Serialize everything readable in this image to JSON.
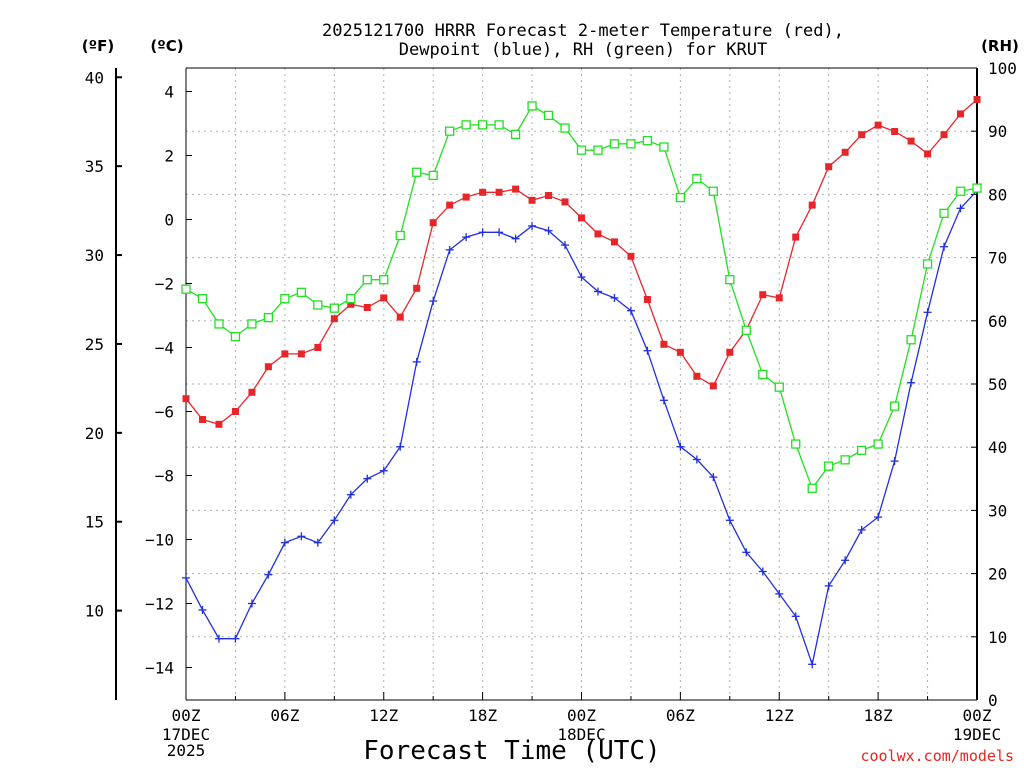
{
  "chart_data": {
    "type": "line",
    "title": [
      "2025121700 HRRR Forecast 2-meter Temperature (red),",
      "Dewpoint (blue), RH (green) for KRUT"
    ],
    "xlabel": "Forecast Time (UTC)",
    "credit": "coolwx.com/models",
    "units": {
      "f": "(ºF)",
      "c": "(ºC)",
      "rh": "(RH)"
    },
    "x_hours_range": [
      0,
      48
    ],
    "x_ticks": [
      {
        "hour": 0,
        "label": "00Z",
        "sub": [
          "17DEC",
          "2025"
        ]
      },
      {
        "hour": 6,
        "label": "06Z"
      },
      {
        "hour": 12,
        "label": "12Z"
      },
      {
        "hour": 18,
        "label": "18Z"
      },
      {
        "hour": 24,
        "label": "00Z",
        "sub": [
          "18DEC"
        ]
      },
      {
        "hour": 30,
        "label": "06Z"
      },
      {
        "hour": 36,
        "label": "12Z"
      },
      {
        "hour": 42,
        "label": "18Z"
      },
      {
        "hour": 48,
        "label": "00Z",
        "sub": [
          "19DEC"
        ]
      }
    ],
    "ylim_c": [
      -15,
      4.5
    ],
    "y_ticks_c": [
      4,
      2,
      0,
      -2,
      -4,
      -6,
      -8,
      -10,
      -12,
      -14
    ],
    "y_ticks_c_labels": [
      "4",
      "2",
      "0",
      "−2",
      "−4",
      "−6",
      "−8",
      "−10",
      "−12",
      "−14"
    ],
    "y_ticks_f": [
      40,
      35,
      30,
      25,
      20,
      15,
      10
    ],
    "ylim_rh": [
      0,
      100
    ],
    "y_ticks_rh": [
      100,
      90,
      80,
      70,
      60,
      50,
      40,
      30,
      20,
      10,
      0
    ],
    "grid": true,
    "series": [
      {
        "name": "Temperature",
        "axis": "c",
        "color": "#e8262a",
        "marker": "filled-square",
        "values": [
          -5.6,
          -6.25,
          -6.4,
          -6.0,
          -5.4,
          -4.6,
          -4.2,
          -4.2,
          -4.0,
          -3.1,
          -2.65,
          -2.75,
          -2.45,
          -3.05,
          -2.15,
          -0.1,
          0.45,
          0.7,
          0.85,
          0.85,
          0.95,
          0.6,
          0.75,
          0.55,
          0.05,
          -0.45,
          -0.7,
          -1.15,
          -2.5,
          -3.9,
          -4.15,
          -4.9,
          -5.2,
          -4.15,
          -3.45,
          -2.35,
          -2.45,
          -0.55,
          0.45,
          1.65,
          2.1,
          2.65,
          2.95,
          2.75,
          2.45,
          2.05,
          2.65,
          3.3,
          3.75
        ]
      },
      {
        "name": "Dewpoint",
        "axis": "c",
        "color": "#2030e0",
        "marker": "plus",
        "values": [
          -11.2,
          -12.2,
          -13.1,
          -13.1,
          -12.0,
          -11.1,
          -10.1,
          -9.9,
          -10.1,
          -9.4,
          -8.6,
          -8.1,
          -7.85,
          -7.1,
          -4.45,
          -2.55,
          -0.95,
          -0.55,
          -0.4,
          -0.4,
          -0.6,
          -0.2,
          -0.35,
          -0.8,
          -1.8,
          -2.25,
          -2.45,
          -2.85,
          -4.1,
          -5.65,
          -7.1,
          -7.5,
          -8.05,
          -9.4,
          -10.4,
          -11.0,
          -11.7,
          -12.4,
          -13.9,
          -11.45,
          -10.65,
          -9.7,
          -9.3,
          -7.55,
          -5.1,
          -2.9,
          -0.85,
          0.35,
          0.9
        ]
      },
      {
        "name": "RH",
        "axis": "rh",
        "color": "#22e022",
        "marker": "open-square",
        "values": [
          65,
          63.5,
          59.5,
          57.5,
          59.5,
          60.5,
          63.5,
          64.5,
          62.5,
          62,
          63.5,
          66.5,
          66.5,
          73.5,
          83.5,
          83,
          90,
          91,
          91,
          91,
          89.5,
          94,
          92.5,
          90.5,
          87,
          87,
          88,
          88,
          88.5,
          87.5,
          79.5,
          82.5,
          80.5,
          66.5,
          58.5,
          51.5,
          49.5,
          40.5,
          33.5,
          37,
          38,
          39.5,
          40.5,
          46.5,
          57,
          69,
          77,
          80.5,
          81
        ]
      }
    ]
  }
}
